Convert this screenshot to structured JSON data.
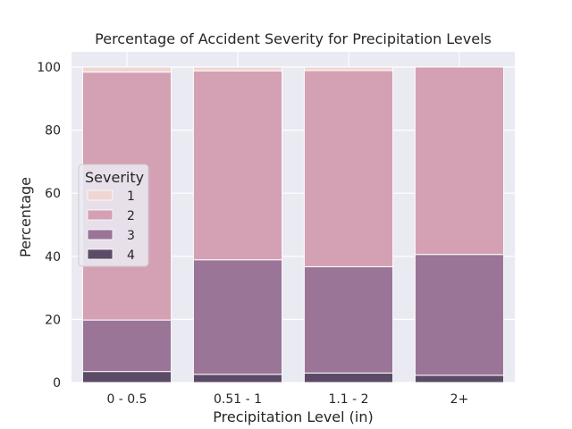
{
  "chart_data": {
    "type": "bar",
    "stacked": true,
    "title": "Percentage of Accident Severity for Precipitation Levels",
    "xlabel": "Precipitation Level (in)",
    "ylabel": "Percentage",
    "ylim": [
      0,
      100
    ],
    "yticks": [
      0,
      20,
      40,
      60,
      80,
      100
    ],
    "grid": true,
    "legend_placement": "center-left",
    "legend_title": "Severity",
    "categories": [
      "0 - 0.5",
      "0.51 - 1",
      "1.1 - 2",
      "2+"
    ],
    "series": [
      {
        "name": "4",
        "color": "#5c4b66",
        "values": [
          3.5,
          2.6,
          3.0,
          2.3
        ]
      },
      {
        "name": "3",
        "color": "#9a7598",
        "values": [
          16.3,
          36.3,
          33.7,
          38.3
        ]
      },
      {
        "name": "2",
        "color": "#d3a1b3",
        "values": [
          78.6,
          59.9,
          62.2,
          59.4
        ]
      },
      {
        "name": "1",
        "color": "#efd6d2",
        "values": [
          1.6,
          1.2,
          1.1,
          0.0
        ]
      }
    ],
    "legend_order": [
      "1",
      "2",
      "3",
      "4"
    ]
  }
}
